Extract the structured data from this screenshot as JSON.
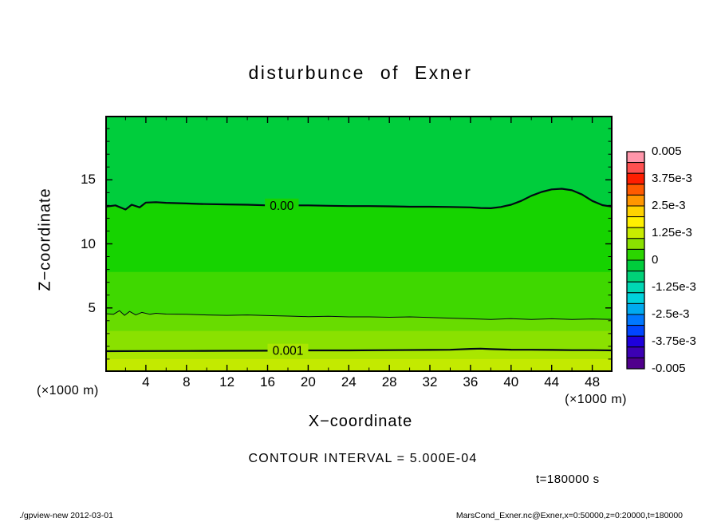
{
  "title": "disturbunce of Exner",
  "labels": {
    "x_axis": "X−coordinate",
    "y_axis": "Z−coordinate",
    "x_unit_left": "(×1000 m)",
    "x_unit_right": "(×1000 m)",
    "contour_interval": "CONTOUR INTERVAL = 5.000E-04",
    "time": "t=180000 s"
  },
  "footer": {
    "left": "./gpview-new  2012-03-01",
    "right": "MarsCond_Exner.nc@Exner,x=0:50000,z=0:20000,t=180000"
  },
  "chart_data": {
    "type": "heatmap",
    "title": "disturbunce of Exner",
    "xlabel": "X−coordinate",
    "ylabel": "Z−coordinate",
    "x_unit": "(×1000 m)",
    "z_unit": "(×1000 m)",
    "x_range": [
      0,
      50
    ],
    "z_range": [
      0,
      20
    ],
    "x_ticks_major": [
      4,
      8,
      12,
      16,
      20,
      24,
      28,
      32,
      36,
      40,
      44,
      48
    ],
    "x_ticks_minor": [
      2,
      6,
      10,
      14,
      18,
      22,
      26,
      30,
      34,
      38,
      42,
      46
    ],
    "z_ticks_major": [
      5,
      10,
      15
    ],
    "z_ticks_minor": [
      1,
      2,
      3,
      4,
      6,
      7,
      8,
      9,
      11,
      12,
      13,
      14,
      16,
      17,
      18,
      19
    ],
    "contour_interval": "5.000E-04",
    "time": "t=180000 s",
    "colorbar": {
      "tick_labels": [
        "0.005",
        "3.75e-3",
        "2.5e-3",
        "1.25e-3",
        "0",
        "-1.25e-3",
        "-2.5e-3",
        "-3.75e-3",
        "-0.005"
      ],
      "box_colors_top_to_bottom": [
        "#ff96aa",
        "#ff5050",
        "#ff1e00",
        "#ff5a00",
        "#ff9600",
        "#ffd200",
        "#fff000",
        "#c8ec00",
        "#8ae100",
        "#2bd500",
        "#00cd3c",
        "#00d278",
        "#00d7b4",
        "#00d2dc",
        "#00aaf0",
        "#0078ff",
        "#0046ff",
        "#1e00dc",
        "#3c00b4",
        "#50008c"
      ]
    },
    "bands": [
      {
        "upper_z": 20,
        "upper_contour": null,
        "color": "#00cd3c"
      },
      {
        "upper_z": null,
        "upper_contour": 0,
        "color": "#16d300"
      },
      {
        "upper_z": 7.8,
        "upper_contour": null,
        "color": "#3fd800"
      },
      {
        "upper_z": null,
        "upper_contour": 1,
        "color": "#68dc00"
      },
      {
        "upper_z": 3.2,
        "upper_contour": null,
        "color": "#8ae100"
      },
      {
        "upper_z": null,
        "upper_contour": 2,
        "color": "#a9e600"
      },
      {
        "upper_z": 1.0,
        "upper_contour": null,
        "color": "#c3ea00"
      }
    ],
    "contours": [
      {
        "level": "0.00",
        "width": 2.2,
        "label": "0.00",
        "label_x": 17.4,
        "label_bg": "#16d300",
        "points": [
          [
            0,
            12.9
          ],
          [
            1,
            13.0
          ],
          [
            2,
            12.68
          ],
          [
            2.6,
            13.05
          ],
          [
            3.4,
            12.85
          ],
          [
            4,
            13.22
          ],
          [
            5,
            13.25
          ],
          [
            6,
            13.2
          ],
          [
            7,
            13.18
          ],
          [
            8,
            13.15
          ],
          [
            9,
            13.12
          ],
          [
            10,
            13.1
          ],
          [
            12,
            13.08
          ],
          [
            14,
            13.05
          ],
          [
            16,
            13.0
          ],
          [
            18,
            13.0
          ],
          [
            20,
            13.0
          ],
          [
            22,
            12.97
          ],
          [
            24,
            12.95
          ],
          [
            26,
            12.95
          ],
          [
            28,
            12.93
          ],
          [
            30,
            12.9
          ],
          [
            32,
            12.9
          ],
          [
            34,
            12.88
          ],
          [
            36,
            12.85
          ],
          [
            37,
            12.8
          ],
          [
            38,
            12.78
          ],
          [
            39,
            12.88
          ],
          [
            40,
            13.05
          ],
          [
            41,
            13.35
          ],
          [
            42,
            13.75
          ],
          [
            43,
            14.05
          ],
          [
            44,
            14.25
          ],
          [
            45,
            14.3
          ],
          [
            46,
            14.18
          ],
          [
            47,
            13.85
          ],
          [
            48,
            13.35
          ],
          [
            49,
            13.02
          ],
          [
            50,
            12.9
          ]
        ]
      },
      {
        "level": "0.0005",
        "width": 1,
        "label": null,
        "label_x": null,
        "label_bg": null,
        "points": [
          [
            0,
            4.55
          ],
          [
            0.8,
            4.5
          ],
          [
            1.4,
            4.78
          ],
          [
            1.9,
            4.42
          ],
          [
            2.4,
            4.72
          ],
          [
            3,
            4.45
          ],
          [
            3.6,
            4.65
          ],
          [
            4.4,
            4.5
          ],
          [
            5,
            4.58
          ],
          [
            6,
            4.52
          ],
          [
            8,
            4.5
          ],
          [
            10,
            4.45
          ],
          [
            12,
            4.42
          ],
          [
            14,
            4.45
          ],
          [
            16,
            4.4
          ],
          [
            18,
            4.36
          ],
          [
            20,
            4.32
          ],
          [
            22,
            4.35
          ],
          [
            24,
            4.3
          ],
          [
            26,
            4.3
          ],
          [
            28,
            4.27
          ],
          [
            30,
            4.3
          ],
          [
            32,
            4.25
          ],
          [
            34,
            4.2
          ],
          [
            36,
            4.15
          ],
          [
            38,
            4.1
          ],
          [
            40,
            4.16
          ],
          [
            42,
            4.1
          ],
          [
            44,
            4.15
          ],
          [
            46,
            4.1
          ],
          [
            48,
            4.14
          ],
          [
            50,
            4.1
          ]
        ]
      },
      {
        "level": "0.001",
        "width": 2.2,
        "label": "0.001",
        "label_x": 18,
        "label_bg": "#a9e600",
        "points": [
          [
            0,
            1.62
          ],
          [
            4,
            1.63
          ],
          [
            8,
            1.64
          ],
          [
            12,
            1.65
          ],
          [
            16,
            1.66
          ],
          [
            20,
            1.68
          ],
          [
            24,
            1.68
          ],
          [
            28,
            1.7
          ],
          [
            32,
            1.72
          ],
          [
            34,
            1.73
          ],
          [
            36,
            1.8
          ],
          [
            37,
            1.82
          ],
          [
            38,
            1.78
          ],
          [
            40,
            1.74
          ],
          [
            42,
            1.73
          ],
          [
            44,
            1.72
          ],
          [
            46,
            1.7
          ],
          [
            48,
            1.7
          ],
          [
            50,
            1.68
          ]
        ]
      }
    ]
  }
}
